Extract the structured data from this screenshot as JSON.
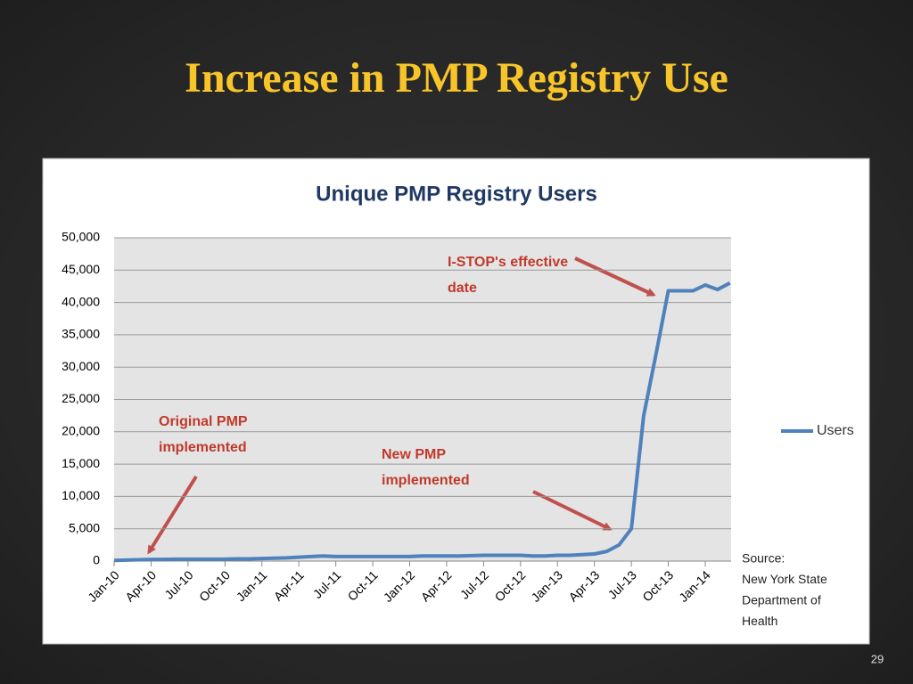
{
  "slide_title": "Increase in PMP Registry Use",
  "page_number": "29",
  "chart_data": {
    "type": "line",
    "title": "Unique PMP Registry Users",
    "categories": [
      "Jan-10",
      null,
      null,
      "Apr-10",
      null,
      null,
      "Jul-10",
      null,
      null,
      "Oct-10",
      null,
      null,
      "Jan-11",
      null,
      null,
      "Apr-11",
      null,
      null,
      "Jul-11",
      null,
      null,
      "Oct-11",
      null,
      null,
      "Jan-12",
      null,
      null,
      "Apr-12",
      null,
      null,
      "Jul-12",
      null,
      null,
      "Oct-12",
      null,
      null,
      "Jan-13",
      null,
      null,
      "Apr-13",
      null,
      null,
      "Jul-13",
      null,
      null,
      "Oct-13",
      null,
      null,
      "Jan-14",
      null,
      null
    ],
    "series": [
      {
        "name": "Users",
        "color": "#4f81bd",
        "values": [
          100,
          150,
          200,
          250,
          250,
          300,
          300,
          300,
          300,
          300,
          350,
          350,
          400,
          450,
          500,
          600,
          700,
          800,
          700,
          700,
          700,
          700,
          700,
          700,
          700,
          800,
          800,
          800,
          800,
          850,
          900,
          900,
          900,
          900,
          800,
          800,
          900,
          900,
          1000,
          1100,
          1500,
          2500,
          5000,
          22500,
          32000,
          41800,
          41800,
          41800,
          42700,
          42000,
          43000
        ]
      }
    ],
    "ylim": [
      0,
      50000
    ],
    "yticks": [
      0,
      {
        "value": 5000,
        "label": "5,000"
      },
      {
        "value": 10000,
        "label": "10,000"
      },
      {
        "value": 15000,
        "label": "15,000"
      },
      {
        "value": 20000,
        "label": "20,000"
      },
      {
        "value": 25000,
        "label": "25,000"
      },
      {
        "value": 30000,
        "label": "30,000"
      },
      {
        "value": 35000,
        "label": "35,000"
      },
      {
        "value": 40000,
        "label": "40,000"
      },
      {
        "value": 45000,
        "label": "45,000"
      },
      {
        "value": 50000,
        "label": "50,000"
      }
    ],
    "grid": true,
    "legend": "right",
    "annotations": [
      {
        "lines": [
          "Original PMP",
          "implemented"
        ]
      },
      {
        "lines": [
          "New PMP",
          "implemented"
        ]
      },
      {
        "lines": [
          "I-STOP's effective",
          "date"
        ]
      }
    ],
    "source": [
      "Source:",
      "New York State",
      "Department of",
      "Health"
    ]
  }
}
